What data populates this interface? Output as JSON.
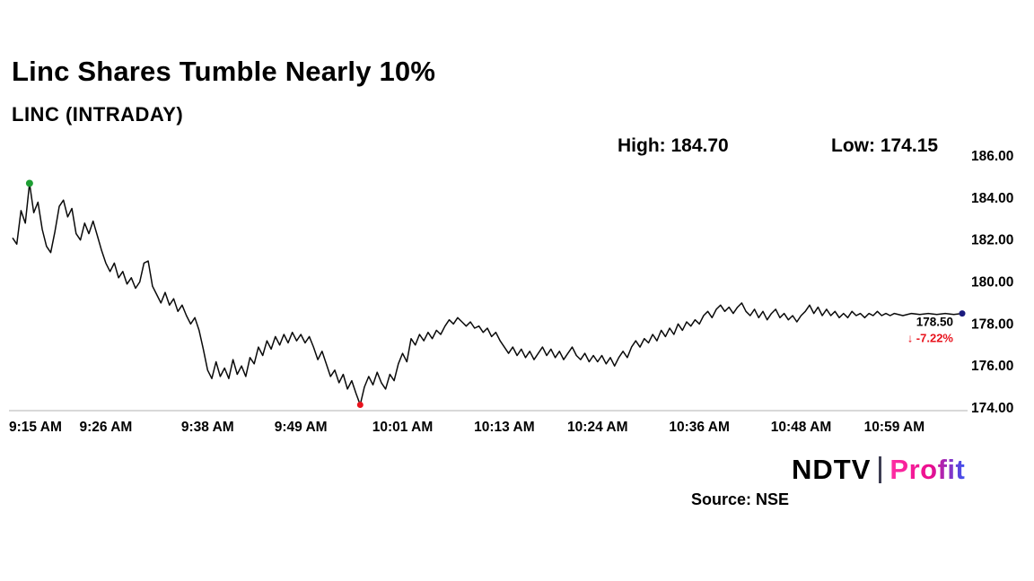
{
  "header": {
    "title": "Linc Shares Tumble Nearly 10%",
    "subtitle": "LINC (INTRADAY)"
  },
  "stats": {
    "high": "High: 184.70",
    "low": "Low: 174.15"
  },
  "annotations": {
    "last_price": "178.50",
    "change_arrow": "↓",
    "change": "-7.22%"
  },
  "footer": {
    "logo_ndtv": "NDTV",
    "logo_profit": "Profit",
    "source": "Source: NSE"
  },
  "colors": {
    "line": "#0a0a0a",
    "green_marker": "#1e9e33",
    "red": "#e8131d",
    "navy_marker": "#1b1b7e",
    "axis": "#b0b0b0",
    "text": "#000000",
    "profit_gradient_start": "#ff2fa4",
    "profit_gradient_mid": "#ec0c8d",
    "profit_gradient_end": "#3a52f0"
  },
  "chart_data": {
    "type": "line",
    "title": "LINC (INTRADAY)",
    "x_unit": "minutes since 9:15 AM",
    "xlim": [
      0,
      112
    ],
    "ylim": [
      174,
      186
    ],
    "grid": false,
    "legend": "none",
    "y_axis_side": "right",
    "y_ticks": [
      186,
      184,
      182,
      180,
      178,
      176,
      174
    ],
    "y_tick_labels": [
      "186.00",
      "184.00",
      "182.00",
      "180.00",
      "178.00",
      "176.00",
      "174.00"
    ],
    "x_ticks": [
      {
        "t": 0,
        "label": "9:15 AM"
      },
      {
        "t": 11,
        "label": "9:26 AM"
      },
      {
        "t": 23,
        "label": "9:38 AM"
      },
      {
        "t": 34,
        "label": "9:49 AM"
      },
      {
        "t": 46,
        "label": "10:01 AM"
      },
      {
        "t": 58,
        "label": "10:13 AM"
      },
      {
        "t": 69,
        "label": "10:24 AM"
      },
      {
        "t": 81,
        "label": "10:36 AM"
      },
      {
        "t": 93,
        "label": "10:48 AM"
      },
      {
        "t": 104,
        "label": "10:59 AM"
      }
    ],
    "high": 184.7,
    "low": 174.15,
    "last": 178.5,
    "change_pct": -7.22,
    "series": [
      {
        "name": "LINC price",
        "points": [
          [
            0,
            182.1
          ],
          [
            0.5,
            181.8
          ],
          [
            1,
            183.4
          ],
          [
            1.5,
            182.8
          ],
          [
            2,
            184.7
          ],
          [
            2.5,
            183.3
          ],
          [
            3,
            183.8
          ],
          [
            3.5,
            182.5
          ],
          [
            4,
            181.7
          ],
          [
            4.5,
            181.4
          ],
          [
            5,
            182.4
          ],
          [
            5.5,
            183.6
          ],
          [
            6,
            183.9
          ],
          [
            6.5,
            183.1
          ],
          [
            7,
            183.5
          ],
          [
            7.5,
            182.3
          ],
          [
            8,
            182.0
          ],
          [
            8.5,
            182.8
          ],
          [
            9,
            182.3
          ],
          [
            9.5,
            182.9
          ],
          [
            10,
            182.2
          ],
          [
            10.5,
            181.5
          ],
          [
            11,
            180.9
          ],
          [
            11.5,
            180.5
          ],
          [
            12,
            180.9
          ],
          [
            12.5,
            180.2
          ],
          [
            13,
            180.5
          ],
          [
            13.5,
            179.9
          ],
          [
            14,
            180.2
          ],
          [
            14.5,
            179.7
          ],
          [
            15,
            180.0
          ],
          [
            15.5,
            180.9
          ],
          [
            16,
            181.0
          ],
          [
            16.5,
            179.8
          ],
          [
            17,
            179.4
          ],
          [
            17.5,
            179.0
          ],
          [
            18,
            179.5
          ],
          [
            18.5,
            178.9
          ],
          [
            19,
            179.2
          ],
          [
            19.5,
            178.6
          ],
          [
            20,
            178.9
          ],
          [
            20.5,
            178.4
          ],
          [
            21,
            178.0
          ],
          [
            21.5,
            178.3
          ],
          [
            22,
            177.7
          ],
          [
            22.5,
            176.8
          ],
          [
            23,
            175.8
          ],
          [
            23.5,
            175.4
          ],
          [
            24,
            176.2
          ],
          [
            24.5,
            175.5
          ],
          [
            25,
            175.9
          ],
          [
            25.5,
            175.4
          ],
          [
            26,
            176.3
          ],
          [
            26.5,
            175.6
          ],
          [
            27,
            176.0
          ],
          [
            27.5,
            175.5
          ],
          [
            28,
            176.4
          ],
          [
            28.5,
            176.1
          ],
          [
            29,
            176.9
          ],
          [
            29.5,
            176.5
          ],
          [
            30,
            177.2
          ],
          [
            30.5,
            176.8
          ],
          [
            31,
            177.4
          ],
          [
            31.5,
            177.0
          ],
          [
            32,
            177.5
          ],
          [
            32.5,
            177.1
          ],
          [
            33,
            177.6
          ],
          [
            33.5,
            177.2
          ],
          [
            34,
            177.5
          ],
          [
            34.5,
            177.1
          ],
          [
            35,
            177.4
          ],
          [
            35.5,
            176.9
          ],
          [
            36,
            176.3
          ],
          [
            36.5,
            176.7
          ],
          [
            37,
            176.1
          ],
          [
            37.5,
            175.5
          ],
          [
            38,
            175.8
          ],
          [
            38.5,
            175.2
          ],
          [
            39,
            175.6
          ],
          [
            39.5,
            174.9
          ],
          [
            40,
            175.3
          ],
          [
            40.5,
            174.7
          ],
          [
            41,
            174.15
          ],
          [
            41.5,
            175.0
          ],
          [
            42,
            175.5
          ],
          [
            42.5,
            175.1
          ],
          [
            43,
            175.7
          ],
          [
            43.5,
            175.2
          ],
          [
            44,
            174.9
          ],
          [
            44.5,
            175.6
          ],
          [
            45,
            175.3
          ],
          [
            45.5,
            176.1
          ],
          [
            46,
            176.6
          ],
          [
            46.5,
            176.2
          ],
          [
            47,
            177.3
          ],
          [
            47.5,
            177.0
          ],
          [
            48,
            177.5
          ],
          [
            48.5,
            177.2
          ],
          [
            49,
            177.6
          ],
          [
            49.5,
            177.3
          ],
          [
            50,
            177.7
          ],
          [
            50.5,
            177.5
          ],
          [
            51,
            177.9
          ],
          [
            51.5,
            178.2
          ],
          [
            52,
            178.0
          ],
          [
            52.5,
            178.3
          ],
          [
            53,
            178.1
          ],
          [
            53.5,
            177.9
          ],
          [
            54,
            178.1
          ],
          [
            54.5,
            177.8
          ],
          [
            55,
            177.9
          ],
          [
            55.5,
            177.6
          ],
          [
            56,
            177.8
          ],
          [
            56.5,
            177.4
          ],
          [
            57,
            177.6
          ],
          [
            57.5,
            177.2
          ],
          [
            58,
            176.9
          ],
          [
            58.5,
            176.6
          ],
          [
            59,
            176.9
          ],
          [
            59.5,
            176.5
          ],
          [
            60,
            176.8
          ],
          [
            60.5,
            176.4
          ],
          [
            61,
            176.7
          ],
          [
            61.5,
            176.3
          ],
          [
            62,
            176.6
          ],
          [
            62.5,
            176.9
          ],
          [
            63,
            176.5
          ],
          [
            63.5,
            176.8
          ],
          [
            64,
            176.4
          ],
          [
            64.5,
            176.7
          ],
          [
            65,
            176.3
          ],
          [
            65.5,
            176.6
          ],
          [
            66,
            176.9
          ],
          [
            66.5,
            176.5
          ],
          [
            67,
            176.3
          ],
          [
            67.5,
            176.6
          ],
          [
            68,
            176.2
          ],
          [
            68.5,
            176.5
          ],
          [
            69,
            176.2
          ],
          [
            69.5,
            176.5
          ],
          [
            70,
            176.1
          ],
          [
            70.5,
            176.4
          ],
          [
            71,
            176.0
          ],
          [
            71.5,
            176.4
          ],
          [
            72,
            176.7
          ],
          [
            72.5,
            176.4
          ],
          [
            73,
            176.9
          ],
          [
            73.5,
            177.2
          ],
          [
            74,
            176.9
          ],
          [
            74.5,
            177.3
          ],
          [
            75,
            177.1
          ],
          [
            75.5,
            177.5
          ],
          [
            76,
            177.2
          ],
          [
            76.5,
            177.7
          ],
          [
            77,
            177.4
          ],
          [
            77.5,
            177.8
          ],
          [
            78,
            177.5
          ],
          [
            78.5,
            178.0
          ],
          [
            79,
            177.7
          ],
          [
            79.5,
            178.1
          ],
          [
            80,
            177.9
          ],
          [
            80.5,
            178.2
          ],
          [
            81,
            178.0
          ],
          [
            81.5,
            178.4
          ],
          [
            82,
            178.6
          ],
          [
            82.5,
            178.3
          ],
          [
            83,
            178.7
          ],
          [
            83.5,
            178.9
          ],
          [
            84,
            178.6
          ],
          [
            84.5,
            178.8
          ],
          [
            85,
            178.5
          ],
          [
            85.5,
            178.8
          ],
          [
            86,
            179.0
          ],
          [
            86.5,
            178.6
          ],
          [
            87,
            178.4
          ],
          [
            87.5,
            178.7
          ],
          [
            88,
            178.3
          ],
          [
            88.5,
            178.6
          ],
          [
            89,
            178.2
          ],
          [
            89.5,
            178.5
          ],
          [
            90,
            178.7
          ],
          [
            90.5,
            178.3
          ],
          [
            91,
            178.5
          ],
          [
            91.5,
            178.2
          ],
          [
            92,
            178.4
          ],
          [
            92.5,
            178.1
          ],
          [
            93,
            178.4
          ],
          [
            93.5,
            178.6
          ],
          [
            94,
            178.9
          ],
          [
            94.5,
            178.5
          ],
          [
            95,
            178.8
          ],
          [
            95.5,
            178.4
          ],
          [
            96,
            178.7
          ],
          [
            96.5,
            178.4
          ],
          [
            97,
            178.6
          ],
          [
            97.5,
            178.3
          ],
          [
            98,
            178.5
          ],
          [
            98.5,
            178.3
          ],
          [
            99,
            178.6
          ],
          [
            99.5,
            178.4
          ],
          [
            100,
            178.5
          ],
          [
            100.5,
            178.3
          ],
          [
            101,
            178.5
          ],
          [
            101.5,
            178.4
          ],
          [
            102,
            178.6
          ],
          [
            102.5,
            178.4
          ],
          [
            103,
            178.5
          ],
          [
            103.5,
            178.4
          ],
          [
            104,
            178.5
          ],
          [
            105,
            178.4
          ],
          [
            106,
            178.5
          ],
          [
            107,
            178.45
          ],
          [
            108,
            178.5
          ],
          [
            109,
            178.45
          ],
          [
            110,
            178.5
          ],
          [
            111,
            178.45
          ],
          [
            112,
            178.5
          ]
        ]
      }
    ]
  }
}
